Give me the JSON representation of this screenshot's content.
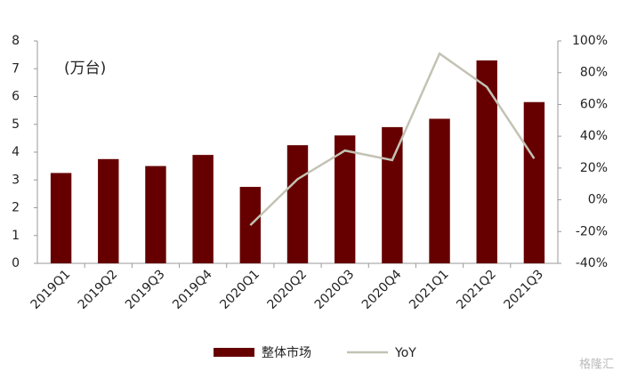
{
  "chart_data": {
    "type": "combo",
    "annotation": "(万台)",
    "watermark": "格隆汇",
    "categories": [
      "2019Q1",
      "2019Q2",
      "2019Q3",
      "2019Q4",
      "2020Q1",
      "2020Q2",
      "2020Q3",
      "2020Q4",
      "2021Q1",
      "2021Q2",
      "2021Q3"
    ],
    "series": [
      {
        "name": "整体市场",
        "type": "bar",
        "color": "#660000",
        "values": [
          3.25,
          3.75,
          3.5,
          3.9,
          2.75,
          4.25,
          4.6,
          4.9,
          5.2,
          7.3,
          5.8
        ]
      },
      {
        "name": "YoY",
        "type": "line",
        "axis": "y2",
        "color": "#c3c2b4",
        "values": [
          null,
          null,
          null,
          null,
          -16,
          13,
          31,
          25,
          92,
          71,
          26
        ]
      }
    ],
    "ylim": [
      0,
      8
    ],
    "yticks": [
      0,
      1,
      2,
      3,
      4,
      5,
      6,
      7,
      8
    ],
    "y2lim": [
      -40,
      100
    ],
    "y2ticks": [
      {
        "value": -40,
        "label": "-40%"
      },
      {
        "value": -20,
        "label": "-20%"
      },
      {
        "value": 0,
        "label": "0%"
      },
      {
        "value": 20,
        "label": "20%"
      },
      {
        "value": 40,
        "label": "40%"
      },
      {
        "value": 60,
        "label": "60%"
      },
      {
        "value": 80,
        "label": "80%"
      },
      {
        "value": 100,
        "label": "100%"
      }
    ],
    "legend": "bottom"
  }
}
